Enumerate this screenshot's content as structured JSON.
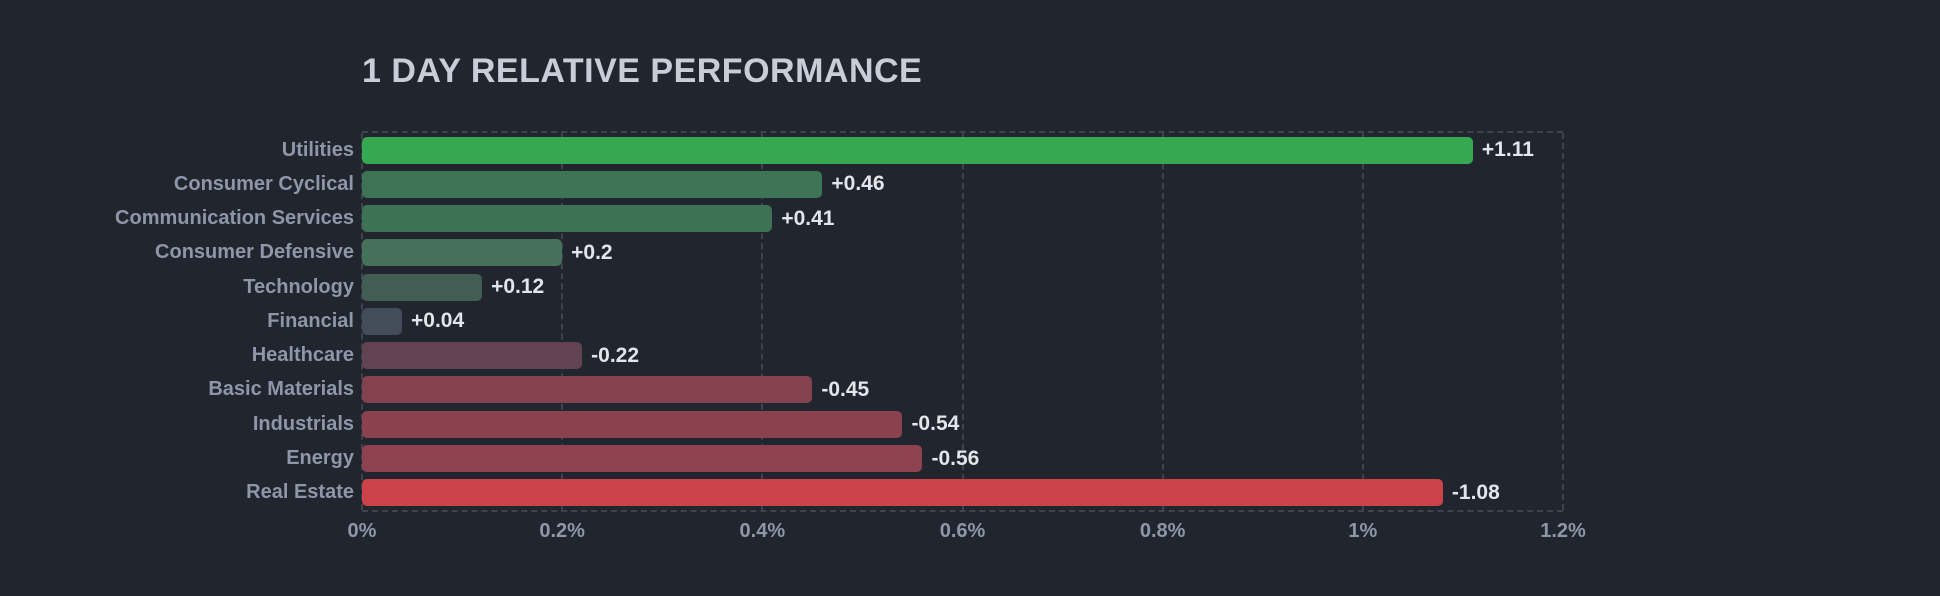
{
  "title": "1 DAY RELATIVE PERFORMANCE",
  "colors": {
    "background": "#21252e",
    "title_text": "#c9cdd7",
    "category_text": "#8e96a9",
    "value_text": "#e2e5ea",
    "gridline": "#3d434f",
    "positive_max": "#36a852",
    "negative_max": "#cb4349"
  },
  "chart_data": {
    "type": "bar",
    "orientation": "horizontal",
    "title": "1 DAY RELATIVE PERFORMANCE",
    "categories": [
      "Utilities",
      "Consumer Cyclical",
      "Communication Services",
      "Consumer Defensive",
      "Technology",
      "Financial",
      "Healthcare",
      "Basic Materials",
      "Industrials",
      "Energy",
      "Real Estate"
    ],
    "values": [
      1.11,
      0.46,
      0.41,
      0.2,
      0.12,
      0.04,
      -0.22,
      -0.45,
      -0.54,
      -0.56,
      -1.08
    ],
    "value_labels": [
      "+1.11",
      "+0.46",
      "+0.41",
      "+0.2",
      "+0.12",
      "+0.04",
      "-0.22",
      "-0.45",
      "-0.54",
      "-0.56",
      "-1.08"
    ],
    "bar_colors": [
      "#36a852",
      "#3c7454",
      "#3e7254",
      "#457059",
      "#415d54",
      "#424d59",
      "#614353",
      "#84414e",
      "#8c424e",
      "#8e424f",
      "#cb4349"
    ],
    "x_ticks": [
      "0%",
      "0.2%",
      "0.4%",
      "0.6%",
      "0.8%",
      "1%",
      "1.2%"
    ],
    "xlim": [
      0,
      1.2
    ],
    "unit": "%",
    "grid": "dashed-vertical",
    "legend": "none",
    "layout_hint": "all bars extend rightward from zero; bar length equals absolute value; color intensity encodes sign and magnitude"
  }
}
